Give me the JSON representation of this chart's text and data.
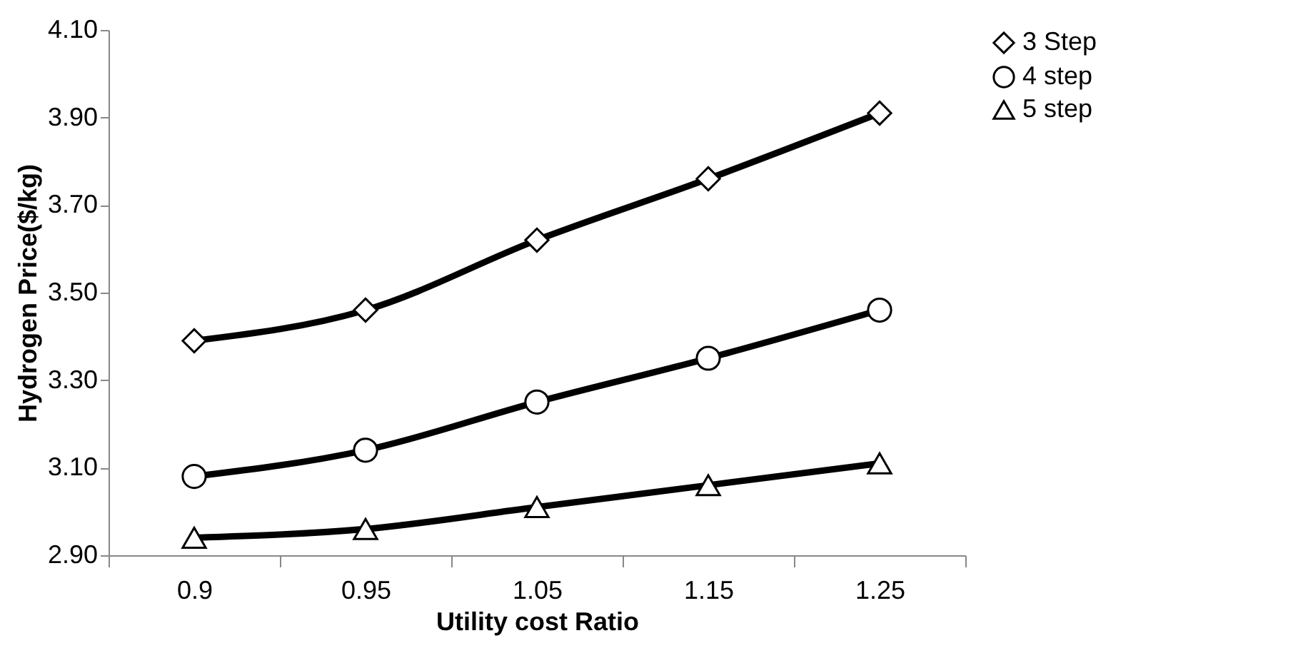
{
  "chart_data": {
    "type": "line",
    "xlabel": "Utility cost Ratio",
    "ylabel": "Hydrogen Price($/kg)",
    "categories": [
      "0.9",
      "0.95",
      "1.05",
      "1.15",
      "1.25"
    ],
    "series": [
      {
        "name": "3 Step",
        "color": "#000000",
        "marker": "diamond",
        "values": [
          3.39,
          3.46,
          3.62,
          3.76,
          3.91
        ]
      },
      {
        "name": "4 step",
        "color": "#000000",
        "marker": "circle",
        "values": [
          3.08,
          3.14,
          3.25,
          3.35,
          3.46
        ]
      },
      {
        "name": "5 step",
        "color": "#000000",
        "marker": "triangle",
        "values": [
          2.94,
          2.96,
          3.01,
          3.06,
          3.11
        ]
      }
    ],
    "ylim": [
      2.9,
      4.1
    ],
    "yticks": [
      {
        "value": 2.9,
        "label": "2.90"
      },
      {
        "value": 3.1,
        "label": "3.10"
      },
      {
        "value": 3.3,
        "label": "3.30"
      },
      {
        "value": 3.5,
        "label": "3.50"
      },
      {
        "value": 3.7,
        "label": "3.70"
      },
      {
        "value": 3.9,
        "label": "3.90"
      },
      {
        "value": 4.1,
        "label": "4.10"
      }
    ],
    "grid": false,
    "legend": "right",
    "line_style": "solid"
  }
}
